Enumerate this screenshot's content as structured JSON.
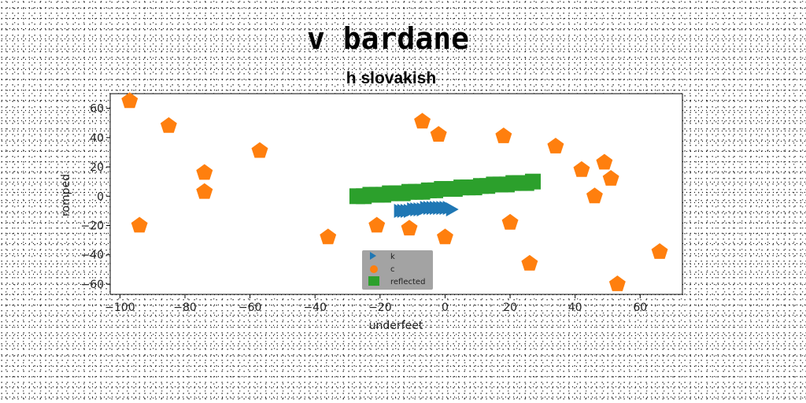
{
  "chart_data": {
    "type": "scatter",
    "title": "v bardane",
    "subtitle": "h slovakish",
    "xlabel": "underfeet",
    "ylabel": "romped",
    "xlim": [
      -103,
      73
    ],
    "ylim": [
      -67,
      70
    ],
    "xticks": [
      -100,
      -80,
      -60,
      -40,
      -20,
      0,
      20,
      40,
      60
    ],
    "yticks": [
      -60,
      -40,
      -20,
      0,
      20,
      40,
      60
    ],
    "grid": false,
    "legend_position": "lower-center",
    "series": [
      {
        "name": "k",
        "marker": "right-triangle",
        "color": "#1f77b4",
        "x": [
          -14,
          -13,
          -12,
          -11,
          -10,
          -9,
          -8,
          -7,
          -6,
          -5,
          -4,
          -3,
          -2,
          -1,
          0,
          1,
          2
        ],
        "y": [
          -10,
          -10,
          -10,
          -10,
          -9,
          -9,
          -9,
          -9,
          -8,
          -8,
          -8,
          -8,
          -8,
          -8,
          -8,
          -8,
          -9
        ]
      },
      {
        "name": "c",
        "marker": "pentagon",
        "color": "#ff7f0e",
        "x": [
          -97,
          -85,
          -57,
          -74,
          -74,
          -94,
          -36,
          -21,
          -11,
          -7,
          -2,
          0,
          18,
          20,
          26,
          34,
          42,
          46,
          49,
          51,
          53,
          66
        ],
        "y": [
          65,
          48,
          31,
          16,
          3,
          -20,
          -28,
          -20,
          -22,
          51,
          42,
          -28,
          41,
          -18,
          -46,
          34,
          18,
          0,
          23,
          12,
          -60,
          -38
        ]
      },
      {
        "name": "reflected",
        "marker": "square",
        "color": "#2ca02c",
        "x": [
          -27,
          -25,
          -23,
          -21,
          -19,
          -17,
          -15,
          -13,
          -11,
          -9,
          -7,
          -5,
          -3,
          -1,
          1,
          3,
          5,
          7,
          9,
          11,
          13,
          15,
          17,
          19,
          21,
          23,
          25,
          27
        ],
        "y": [
          0,
          0,
          1,
          1,
          1,
          2,
          2,
          2,
          3,
          3,
          3,
          4,
          4,
          5,
          5,
          5,
          6,
          6,
          6,
          7,
          7,
          8,
          8,
          8,
          9,
          9,
          9,
          10
        ]
      }
    ]
  }
}
